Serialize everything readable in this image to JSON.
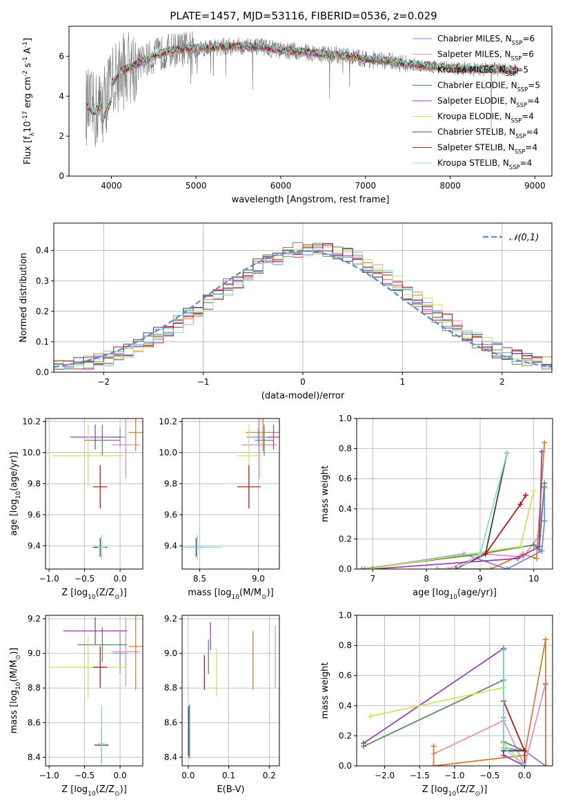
{
  "figure": {
    "title": "PLATE=1457, MJD=53116, FIBERID=0536, z=0.029"
  },
  "models": [
    {
      "name": "Chabrier MILES, N$_{SSP}$=6",
      "color": "#6a8fd4"
    },
    {
      "name": "Salpeter MILES, N$_{SSP}$=6",
      "color": "#e48fc4"
    },
    {
      "name": "Kroupa MILES, N$_{SSP}$=5",
      "color": "#d97a2c"
    },
    {
      "name": "Chabrier ELODIE, N$_{SSP}$=5",
      "color": "#5a8a5f"
    },
    {
      "name": "Salpeter ELODIE, N$_{SSP}$=4",
      "color": "#9b3fb4"
    },
    {
      "name": "Kroupa ELODIE, N$_{SSP}$=4",
      "color": "#cfe35d"
    },
    {
      "name": "Chabrier STELIB, N$_{SSP}$=4",
      "color": "#404040"
    },
    {
      "name": "Salpeter STELIB, N$_{SSP}$=4",
      "color": "#b01818"
    },
    {
      "name": "Kroupa STELIB, N$_{SSP}$=4",
      "color": "#7fdcdc"
    }
  ],
  "chart_data": [
    {
      "id": "spectrum",
      "type": "line",
      "xlabel": "wavelength [Angstrom, rest frame]",
      "ylabel": "Flux [f$_\\lambda$10$^{-17}$ erg cm$^{-2}$ s$^{-1}$ A$^{-1}$]",
      "xlim": [
        3500,
        9200
      ],
      "ylim": [
        0,
        7.5
      ],
      "xticks": [
        4000,
        5000,
        6000,
        7000,
        8000,
        9000
      ],
      "yticks": [
        0,
        2,
        4,
        6
      ],
      "data_color": "#808080",
      "data_range": [
        3700,
        8800
      ],
      "continuum": {
        "x": [
          3700,
          3800,
          3900,
          4000,
          4100,
          4200,
          4300,
          4500,
          4700,
          5000,
          5200,
          5500,
          5800,
          6000,
          6300,
          6500,
          6800,
          7000,
          7300,
          7500,
          7800,
          8000,
          8300,
          8600,
          8800
        ],
        "y": [
          3.5,
          3.2,
          3.6,
          4.6,
          5.2,
          5.4,
          5.6,
          6.0,
          6.3,
          6.4,
          6.45,
          6.5,
          6.45,
          6.3,
          6.2,
          6.1,
          6.0,
          5.85,
          5.75,
          5.6,
          5.5,
          5.4,
          5.35,
          5.35,
          5.3
        ]
      },
      "legend_position": "upper right",
      "grid": false
    },
    {
      "id": "residuals",
      "type": "histogram",
      "xlabel": "(data-model)/error",
      "ylabel": "Normed distribution",
      "xlim": [
        -2.5,
        2.5
      ],
      "ylim": [
        0,
        0.49
      ],
      "xticks": [
        -2,
        -1,
        0,
        1,
        2
      ],
      "yticks": [
        0.0,
        0.1,
        0.2,
        0.3,
        0.4
      ],
      "bin_width": 0.1,
      "reference": {
        "name": "$\\mathcal{N}(0,1)$",
        "mean": 0,
        "sigma": 1,
        "color": "#5b8fd4"
      },
      "legend_position": "upper right",
      "grid": true
    },
    {
      "id": "age_vs_Z",
      "type": "scatter",
      "xlabel": "Z [log$_{10}$(Z/Z$_\\odot$)]",
      "ylabel": "age  [log$_{10}$(age/yr)]",
      "xlim": [
        -1.05,
        0.32
      ],
      "ylim": [
        9.25,
        10.22
      ],
      "xticks": [
        -1.0,
        -0.5,
        0.0
      ],
      "yticks": [
        9.4,
        9.6,
        9.8,
        10.0,
        10.2
      ],
      "grid": true,
      "points": [
        {
          "model": 0,
          "x": 0.0,
          "y": 10.1,
          "xerr": 0.08,
          "yerr": 0.06
        },
        {
          "model": 1,
          "x": 0.08,
          "y": 10.05,
          "xerr": 0.2,
          "yerr": 0.22
        },
        {
          "model": 2,
          "x": 0.22,
          "y": 10.13,
          "xerr": 0.1,
          "yerr": 0.12
        },
        {
          "model": 3,
          "x": -0.25,
          "y": 10.08,
          "xerr": 0.25,
          "yerr": 0.1
        },
        {
          "model": 4,
          "x": -0.35,
          "y": 10.1,
          "xerr": 0.35,
          "yerr": 0.08
        },
        {
          "model": 5,
          "x": -0.45,
          "y": 9.98,
          "xerr": 0.5,
          "yerr": 0.2
        },
        {
          "model": 6,
          "x": -0.28,
          "y": 9.39,
          "xerr": 0.1,
          "yerr": 0.06
        },
        {
          "model": 7,
          "x": -0.28,
          "y": 9.78,
          "xerr": 0.1,
          "yerr": 0.14
        },
        {
          "model": 8,
          "x": -0.26,
          "y": 9.39,
          "xerr": 0.05,
          "yerr": 0.08
        }
      ]
    },
    {
      "id": "age_vs_mass",
      "type": "scatter",
      "xlabel": "mass [log$_{10}$(M/M$_\\odot$)]",
      "ylabel": "",
      "xlim": [
        8.35,
        9.18
      ],
      "ylim": [
        9.25,
        10.22
      ],
      "xticks": [
        8.5,
        9.0
      ],
      "yticks": [
        9.4,
        9.6,
        9.8,
        10.0,
        10.2
      ],
      "grid": true,
      "points": [
        {
          "model": 0,
          "x": 9.0,
          "y": 10.1,
          "xerr": 0.1,
          "yerr": 0.06
        },
        {
          "model": 1,
          "x": 9.01,
          "y": 10.05,
          "xerr": 0.15,
          "yerr": 0.22
        },
        {
          "model": 2,
          "x": 9.04,
          "y": 10.13,
          "xerr": 0.15,
          "yerr": 0.12
        },
        {
          "model": 3,
          "x": 9.05,
          "y": 10.08,
          "xerr": 0.08,
          "yerr": 0.1
        },
        {
          "model": 4,
          "x": 9.13,
          "y": 10.1,
          "xerr": 0.05,
          "yerr": 0.08
        },
        {
          "model": 5,
          "x": 8.92,
          "y": 9.98,
          "xerr": 0.1,
          "yerr": 0.2
        },
        {
          "model": 6,
          "x": 8.47,
          "y": 9.39,
          "xerr": 0.06,
          "yerr": 0.06
        },
        {
          "model": 7,
          "x": 8.92,
          "y": 9.78,
          "xerr": 0.1,
          "yerr": 0.14
        },
        {
          "model": 8,
          "x": 8.48,
          "y": 9.39,
          "xerr": 0.2,
          "yerr": 0.08
        }
      ]
    },
    {
      "id": "weight_vs_age",
      "type": "line",
      "xlabel": "age  [log$_{10}$(age/yr)]",
      "ylabel": "mass weight",
      "xlim": [
        6.7,
        10.35
      ],
      "ylim": [
        0,
        1.0
      ],
      "xticks": [
        7,
        8,
        9,
        10
      ],
      "yticks": [
        0.0,
        0.2,
        0.4,
        0.6,
        0.8,
        1.0
      ],
      "grid": true,
      "series": [
        {
          "model": 0,
          "x": [
            6.85,
            8.7,
            9.5,
            10.15,
            10.2,
            10.2
          ],
          "y": [
            0.0,
            0.1,
            0.0,
            0.12,
            0.32,
            0.54
          ]
        },
        {
          "model": 1,
          "x": [
            8.4,
            9.1,
            9.8,
            10.1,
            10.2
          ],
          "y": [
            0.0,
            0.1,
            0.08,
            0.22,
            0.55
          ]
        },
        {
          "model": 2,
          "x": [
            8.2,
            9.2,
            9.8,
            10.05,
            10.2
          ],
          "y": [
            0.0,
            0.0,
            0.1,
            0.07,
            0.84
          ]
        },
        {
          "model": 3,
          "x": [
            6.8,
            9.0,
            10.0,
            10.1,
            10.2
          ],
          "y": [
            0.0,
            0.1,
            0.16,
            0.13,
            0.57
          ]
        },
        {
          "model": 4,
          "x": [
            7.0,
            9.7,
            10.1,
            10.15
          ],
          "y": [
            0.0,
            0.07,
            0.15,
            0.78
          ]
        },
        {
          "model": 5,
          "x": [
            6.9,
            9.75,
            10.0
          ],
          "y": [
            0.0,
            0.15,
            0.52
          ]
        },
        {
          "model": 6,
          "x": [
            8.55,
            9.1,
            9.5
          ],
          "y": [
            0.0,
            0.1,
            0.77
          ]
        },
        {
          "model": 7,
          "x": [
            8.55,
            9.1,
            9.75,
            9.85
          ],
          "y": [
            0.0,
            0.1,
            0.43,
            0.49
          ]
        },
        {
          "model": 8,
          "x": [
            8.6,
            9.0,
            9.5
          ],
          "y": [
            0.0,
            0.1,
            0.77
          ]
        }
      ]
    },
    {
      "id": "mass_vs_Z",
      "type": "scatter",
      "xlabel": "Z [log$_{10}$(Z/Z$_\\odot$)]",
      "ylabel": "mass [log$_{10}$(M/M$_\\odot$)]",
      "xlim": [
        -1.05,
        0.32
      ],
      "ylim": [
        8.35,
        9.22
      ],
      "xticks": [
        -1.0,
        -0.5,
        0.0
      ],
      "yticks": [
        8.4,
        8.6,
        8.8,
        9.0,
        9.2
      ],
      "grid": true,
      "points": [
        {
          "model": 0,
          "x": 0.0,
          "y": 9.0,
          "xerr": 0.1,
          "yerr": 0.12
        },
        {
          "model": 1,
          "x": 0.08,
          "y": 9.01,
          "xerr": 0.2,
          "yerr": 0.2
        },
        {
          "model": 2,
          "x": 0.22,
          "y": 9.04,
          "xerr": 0.1,
          "yerr": 0.25
        },
        {
          "model": 3,
          "x": -0.25,
          "y": 9.05,
          "xerr": 0.35,
          "yerr": 0.1
        },
        {
          "model": 4,
          "x": -0.35,
          "y": 9.13,
          "xerr": 0.45,
          "yerr": 0.08
        },
        {
          "model": 5,
          "x": -0.45,
          "y": 8.92,
          "xerr": 0.55,
          "yerr": 0.18
        },
        {
          "model": 6,
          "x": -0.26,
          "y": 8.47,
          "xerr": 0.1,
          "yerr": 0.1
        },
        {
          "model": 7,
          "x": -0.28,
          "y": 8.92,
          "xerr": 0.1,
          "yerr": 0.12
        },
        {
          "model": 8,
          "x": -0.26,
          "y": 8.48,
          "xerr": 0.05,
          "yerr": 0.22
        }
      ]
    },
    {
      "id": "mass_vs_EBV",
      "type": "scatter",
      "xlabel": "E(B-V)",
      "ylabel": "",
      "xlim": [
        -0.015,
        0.225
      ],
      "ylim": [
        8.35,
        9.22
      ],
      "xticks": [
        0.0,
        0.1,
        0.2
      ],
      "yticks": [
        8.4,
        8.6,
        8.8,
        9.0,
        9.2
      ],
      "grid": true,
      "points": [
        {
          "model": 0,
          "x": 0.0,
          "y": 8.55,
          "xerr": 0.0,
          "yerr": 0.14
        },
        {
          "model": 1,
          "x": 0.215,
          "y": 8.98,
          "xerr": 0.0,
          "yerr": 0.18
        },
        {
          "model": 2,
          "x": 0.16,
          "y": 8.96,
          "xerr": 0.0,
          "yerr": 0.17
        },
        {
          "model": 3,
          "x": 0.05,
          "y": 8.98,
          "xerr": 0.0,
          "yerr": 0.1
        },
        {
          "model": 4,
          "x": 0.055,
          "y": 9.1,
          "xerr": 0.0,
          "yerr": 0.08
        },
        {
          "model": 5,
          "x": 0.07,
          "y": 8.89,
          "xerr": 0.0,
          "yerr": 0.14
        },
        {
          "model": 6,
          "x": 0.002,
          "y": 8.55,
          "xerr": 0.0,
          "yerr": 0.15
        },
        {
          "model": 7,
          "x": 0.04,
          "y": 8.89,
          "xerr": 0.0,
          "yerr": 0.1
        },
        {
          "model": 8,
          "x": 0.004,
          "y": 8.55,
          "xerr": 0.0,
          "yerr": 0.16
        }
      ]
    },
    {
      "id": "weight_vs_Z",
      "type": "line",
      "xlabel": "Z [log$_{10}$(Z/Z$_\\odot$)]",
      "ylabel": "mass weight",
      "xlim": [
        -2.4,
        0.4
      ],
      "ylim": [
        0,
        1.0
      ],
      "xticks": [
        -2.0,
        -1.5,
        -1.0,
        -0.5,
        0.0
      ],
      "yticks": [
        0.0,
        0.2,
        0.4,
        0.6,
        0.8,
        1.0
      ],
      "grid": true,
      "series": [
        {
          "model": 0,
          "x": [
            -0.3,
            -0.3,
            0.0,
            0.3,
            0.3
          ],
          "y": [
            0.32,
            0.12,
            0.1,
            0.0,
            0.54
          ]
        },
        {
          "model": 1,
          "x": [
            -1.3,
            -0.3,
            0.0,
            0.3,
            0.3
          ],
          "y": [
            0.08,
            0.3,
            0.0,
            0.55,
            0.0
          ]
        },
        {
          "model": 2,
          "x": [
            -1.3,
            -1.3,
            0.0,
            0.3,
            0.3
          ],
          "y": [
            0.13,
            0.0,
            0.07,
            0.84,
            0.0
          ]
        },
        {
          "model": 3,
          "x": [
            -2.3,
            -0.3,
            -0.3,
            0.0,
            0.0
          ],
          "y": [
            0.13,
            0.57,
            0.16,
            0.1,
            0.0
          ]
        },
        {
          "model": 4,
          "x": [
            -2.3,
            -0.3,
            -0.3,
            0.0
          ],
          "y": [
            0.15,
            0.78,
            0.07,
            0.0
          ]
        },
        {
          "model": 5,
          "x": [
            -2.2,
            -0.3,
            -0.3,
            0.0
          ],
          "y": [
            0.33,
            0.52,
            0.15,
            0.0
          ]
        },
        {
          "model": 6,
          "x": [
            -0.3,
            -0.3,
            0.0
          ],
          "y": [
            0.77,
            0.1,
            0.1
          ]
        },
        {
          "model": 7,
          "x": [
            -0.3,
            0.0,
            0.0
          ],
          "y": [
            0.43,
            0.1,
            0.0
          ]
        },
        {
          "model": 8,
          "x": [
            -0.3,
            -0.3,
            0.0
          ],
          "y": [
            0.77,
            0.12,
            0.0
          ]
        }
      ]
    }
  ]
}
